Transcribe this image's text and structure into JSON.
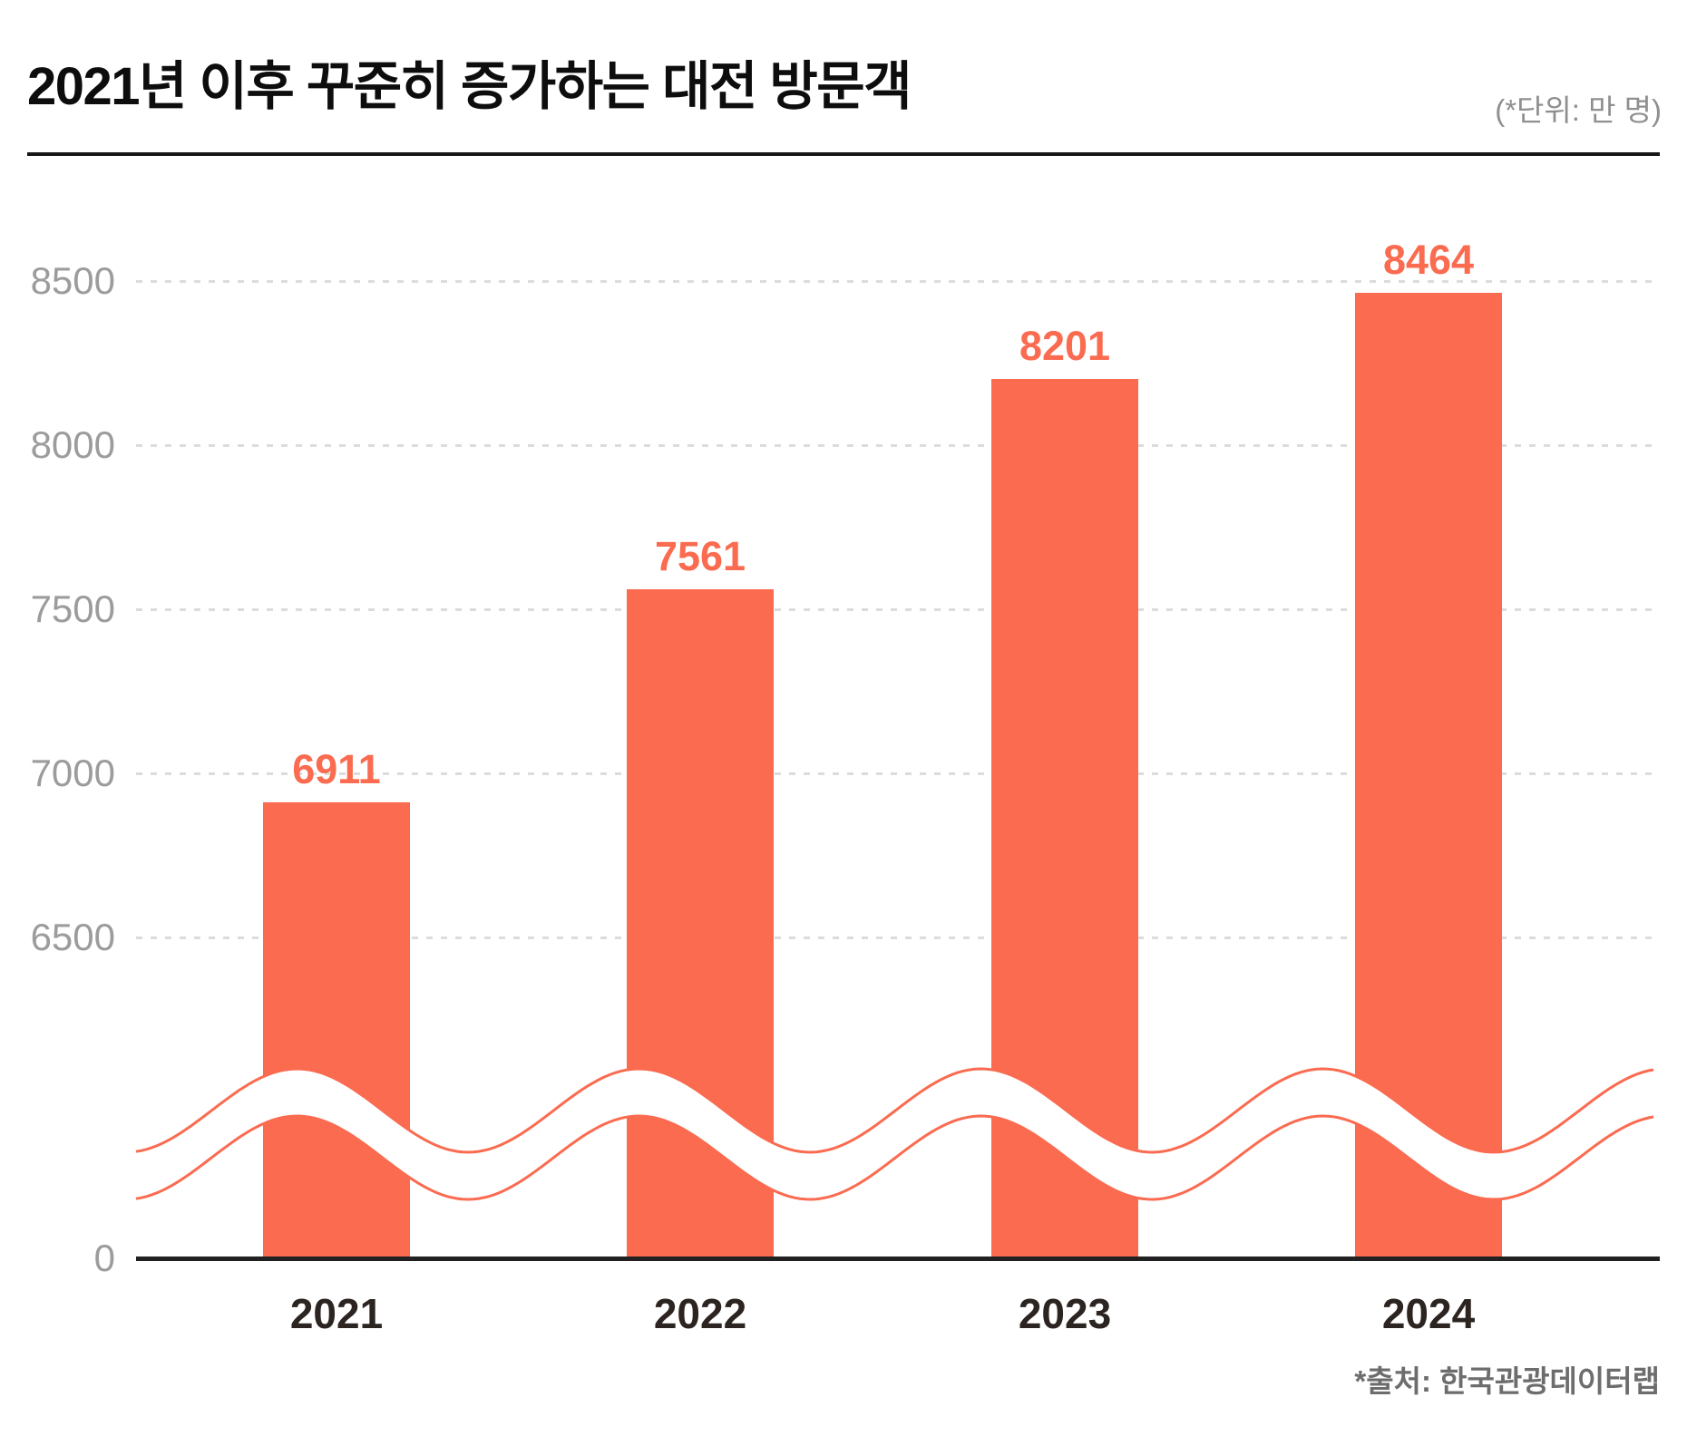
{
  "header": {
    "title": "2021년 이후 꾸준히 증가하는 대전 방문객",
    "unit_note": "(*단위: 만 명)"
  },
  "footer": {
    "source": "*출처: 한국관광데이터랩"
  },
  "chart_data": {
    "type": "bar",
    "title": "2021년 이후 꾸준히 증가하는 대전 방문객",
    "unit": "만 명",
    "categories": [
      "2021",
      "2022",
      "2023",
      "2024"
    ],
    "values": [
      6911,
      7561,
      8201,
      8464
    ],
    "y_ticks": [
      8500,
      8000,
      7500,
      7000,
      6500
    ],
    "y_zero_label": "0",
    "axis_break": true,
    "ylim_upper_segment": [
      6500,
      8600
    ],
    "grid": "horizontal-dashed",
    "legend": "none",
    "bar_color": "#fa6b50",
    "value_label_color": "#fa6b50",
    "gridline_color": "#dcdcdc",
    "tick_label_color": "#9c9c9c"
  }
}
